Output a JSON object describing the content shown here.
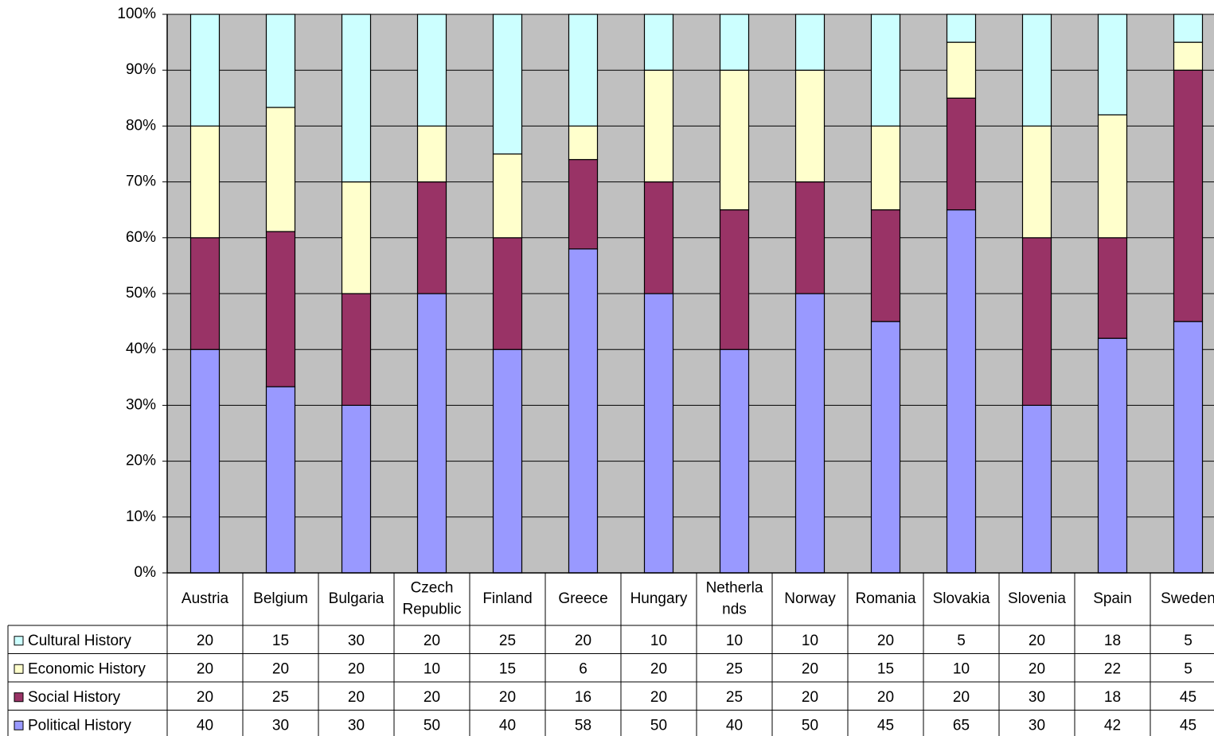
{
  "colors": {
    "plot_background": "#c0c0c0",
    "gridline": "#000000",
    "political": "#9999ff",
    "social": "#993366",
    "economic": "#ffffcc",
    "cultural": "#ccffff"
  },
  "chart_data": {
    "type": "bar",
    "stacked": "percent",
    "title": "",
    "xlabel": "",
    "ylabel": "",
    "ylim": [
      0,
      100
    ],
    "y_ticks": [
      "0%",
      "10%",
      "20%",
      "30%",
      "40%",
      "50%",
      "60%",
      "70%",
      "80%",
      "90%",
      "100%"
    ],
    "grid": true,
    "legend_placement": "data-table",
    "categories": [
      "Austria",
      "Belgium",
      "Bulgaria",
      "Czech Republic",
      "Finland",
      "Greece",
      "Hungary",
      "Netherlands",
      "Norway",
      "Romania",
      "Slovakia",
      "Slovenia",
      "Spain",
      "Sweden"
    ],
    "category_label_lines": [
      [
        "Austria"
      ],
      [
        "Belgium"
      ],
      [
        "Bulgaria"
      ],
      [
        "Czech",
        "Republic"
      ],
      [
        "Finland"
      ],
      [
        "Greece"
      ],
      [
        "Hungary"
      ],
      [
        "Netherla",
        "nds"
      ],
      [
        "Norway"
      ],
      [
        "Romania"
      ],
      [
        "Slovakia"
      ],
      [
        "Slovenia"
      ],
      [
        "Spain"
      ],
      [
        "Sweden"
      ]
    ],
    "series": [
      {
        "name": "Political History",
        "color_key": "political",
        "values": [
          40,
          30,
          30,
          50,
          40,
          58,
          50,
          40,
          50,
          45,
          65,
          30,
          42,
          45
        ]
      },
      {
        "name": "Social History",
        "color_key": "social",
        "values": [
          20,
          25,
          20,
          20,
          20,
          16,
          20,
          25,
          20,
          20,
          20,
          30,
          18,
          45
        ]
      },
      {
        "name": "Economic History",
        "color_key": "economic",
        "values": [
          20,
          20,
          20,
          10,
          15,
          6,
          20,
          25,
          20,
          15,
          10,
          20,
          22,
          5
        ]
      },
      {
        "name": "Cultural History",
        "color_key": "cultural",
        "values": [
          20,
          15,
          30,
          20,
          25,
          20,
          10,
          10,
          10,
          20,
          5,
          20,
          18,
          5
        ]
      }
    ],
    "table_row_order": [
      "Cultural History",
      "Economic History",
      "Social History",
      "Political History"
    ]
  }
}
